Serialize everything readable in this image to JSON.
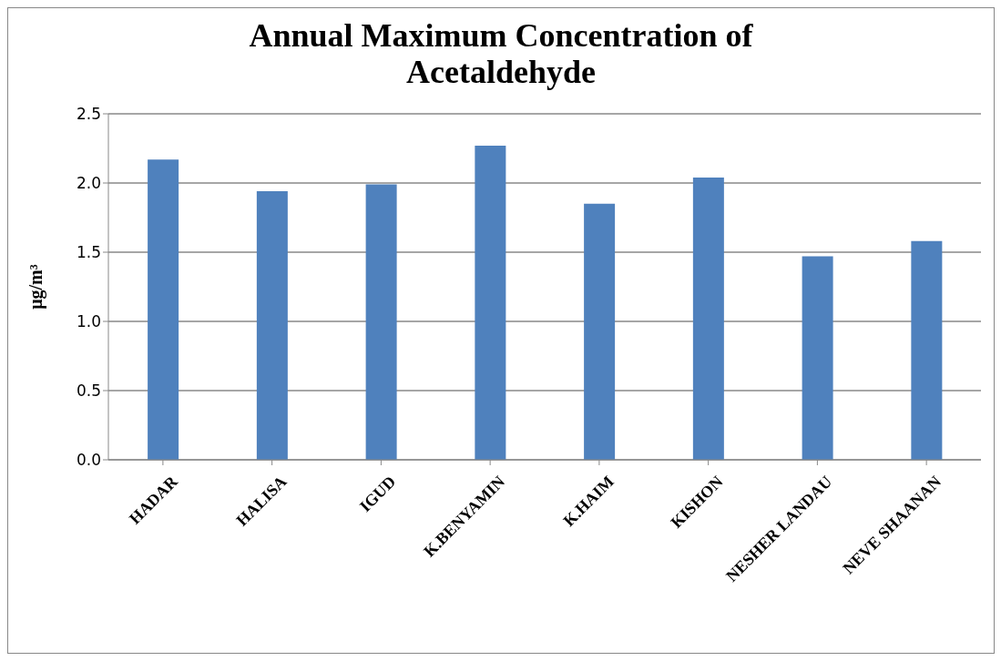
{
  "chart_data": {
    "type": "bar",
    "title": "Annual Maximum Concentration of Acetaldehyde",
    "ylabel": "μg/m³",
    "categories": [
      "HADAR",
      "HALISA",
      "IGUD",
      "K.BENYAMIN",
      "K.HAIM",
      "KISHON",
      "NESHER LANDAU",
      "NEVE SHAANAN"
    ],
    "values": [
      2.17,
      1.94,
      1.99,
      2.27,
      1.85,
      2.04,
      1.47,
      1.58
    ],
    "color": "#4f81bd",
    "ylim": [
      0,
      2.5
    ],
    "yticks": [
      {
        "value": 0,
        "label": "0.0"
      },
      {
        "value": 0.5,
        "label": "0.5"
      },
      {
        "value": 1,
        "label": "1.0"
      },
      {
        "value": 1.5,
        "label": "1.5"
      },
      {
        "value": 2,
        "label": "2.0"
      },
      {
        "value": 2.5,
        "label": "2.5"
      }
    ],
    "grid": "y"
  }
}
